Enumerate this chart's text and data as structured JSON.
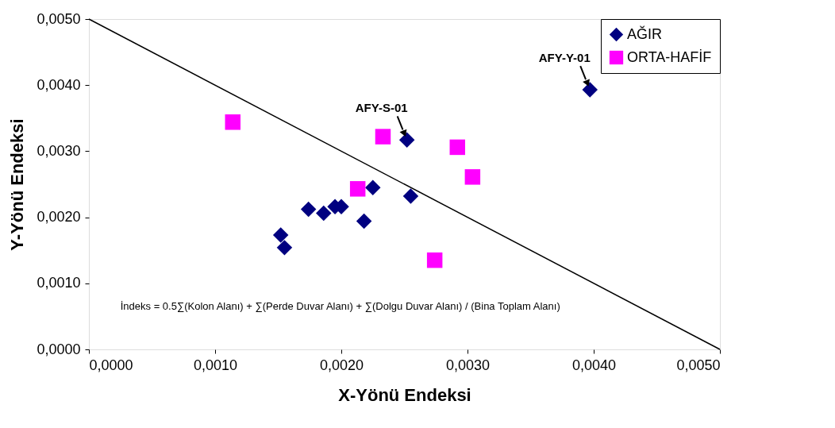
{
  "chart_data": {
    "type": "scatter",
    "xlabel": "X-Yönü Endeksi",
    "ylabel": "Y-Yönü Endeksi",
    "xlim": [
      0,
      0.005
    ],
    "ylim": [
      0,
      0.005
    ],
    "xticks": [
      {
        "value": 0,
        "label": "0,0000"
      },
      {
        "value": 0.001,
        "label": "0,0010"
      },
      {
        "value": 0.002,
        "label": "0,0020"
      },
      {
        "value": 0.003,
        "label": "0,0030"
      },
      {
        "value": 0.004,
        "label": "0,0040"
      },
      {
        "value": 0.005,
        "label": "0,0050"
      }
    ],
    "yticks": [
      {
        "value": 0,
        "label": "0,0000"
      },
      {
        "value": 0.001,
        "label": "0,0010"
      },
      {
        "value": 0.002,
        "label": "0,0020"
      },
      {
        "value": 0.003,
        "label": "0,0030"
      },
      {
        "value": 0.004,
        "label": "0,0040"
      },
      {
        "value": 0.005,
        "label": "0,0050"
      }
    ],
    "grid": false,
    "legend": "top right",
    "series": [
      {
        "name": "AĞIR",
        "color": "#000080",
        "marker": "diamond",
        "x": [
          0.00152,
          0.00155,
          0.00174,
          0.00186,
          0.00195,
          0.002,
          0.00218,
          0.00225,
          0.00252,
          0.00255,
          0.00397
        ],
        "values": [
          0.00173,
          0.00154,
          0.00212,
          0.00206,
          0.00216,
          0.00216,
          0.00194,
          0.00245,
          0.00317,
          0.00232,
          0.00393
        ]
      },
      {
        "name": "ORTA-HAFİF",
        "color": "#ff00ff",
        "marker": "square",
        "x": [
          0.00114,
          0.00233,
          0.00213,
          0.00292,
          0.00304,
          0.00274
        ],
        "values": [
          0.00344,
          0.00322,
          0.00243,
          0.00306,
          0.00261,
          0.00135
        ]
      },
      {
        "type": "line",
        "color": "#000000",
        "marker": "none",
        "line_style": "solid",
        "x": [
          0,
          0.005
        ],
        "values": [
          0.005,
          0
        ]
      }
    ],
    "annotations": [
      {
        "text": "AFY-S-01",
        "x": 0.00252,
        "y": 0.00317
      },
      {
        "text": "AFY-Y-01",
        "x": 0.00397,
        "y": 0.00393
      },
      "İndeks = 0.5∑(Kolon Alanı) + ∑(Perde Duvar Alanı) + ∑(Dolgu Duvar Alanı) / (Bina Toplam Alanı)"
    ]
  }
}
